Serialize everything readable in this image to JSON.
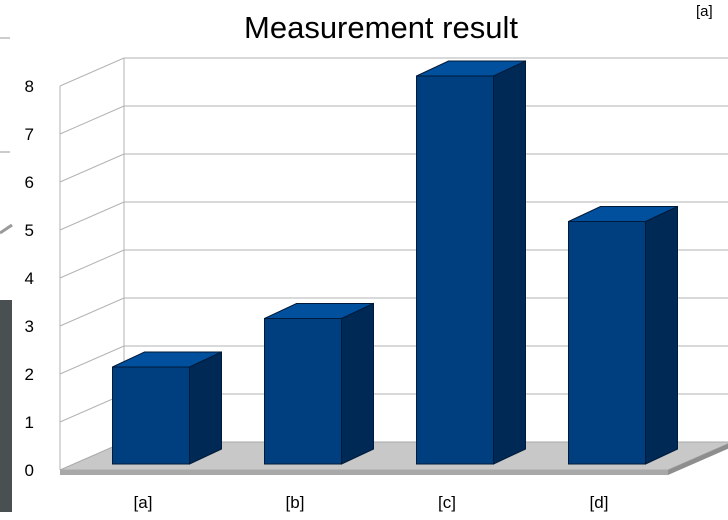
{
  "chart_data": {
    "type": "bar",
    "title": "Measurement result",
    "xlabel": "",
    "ylabel": "",
    "categories": [
      "[a]",
      "[b]",
      "[c]",
      "[d]"
    ],
    "values": [
      2,
      3,
      8,
      5
    ],
    "ylim": [
      0,
      8
    ],
    "yticks": [
      "0",
      "1",
      "2",
      "3",
      "4",
      "5",
      "6",
      "7",
      "8"
    ],
    "grid": true,
    "legend_partial_label": "[a]",
    "colors": {
      "bar_front": "#003f7f",
      "bar_top": "#00509e",
      "bar_side": "#002a55",
      "floor": "#c8c8c8",
      "grid": "#b3b3b3",
      "background_panel": "#4a4f52"
    }
  }
}
